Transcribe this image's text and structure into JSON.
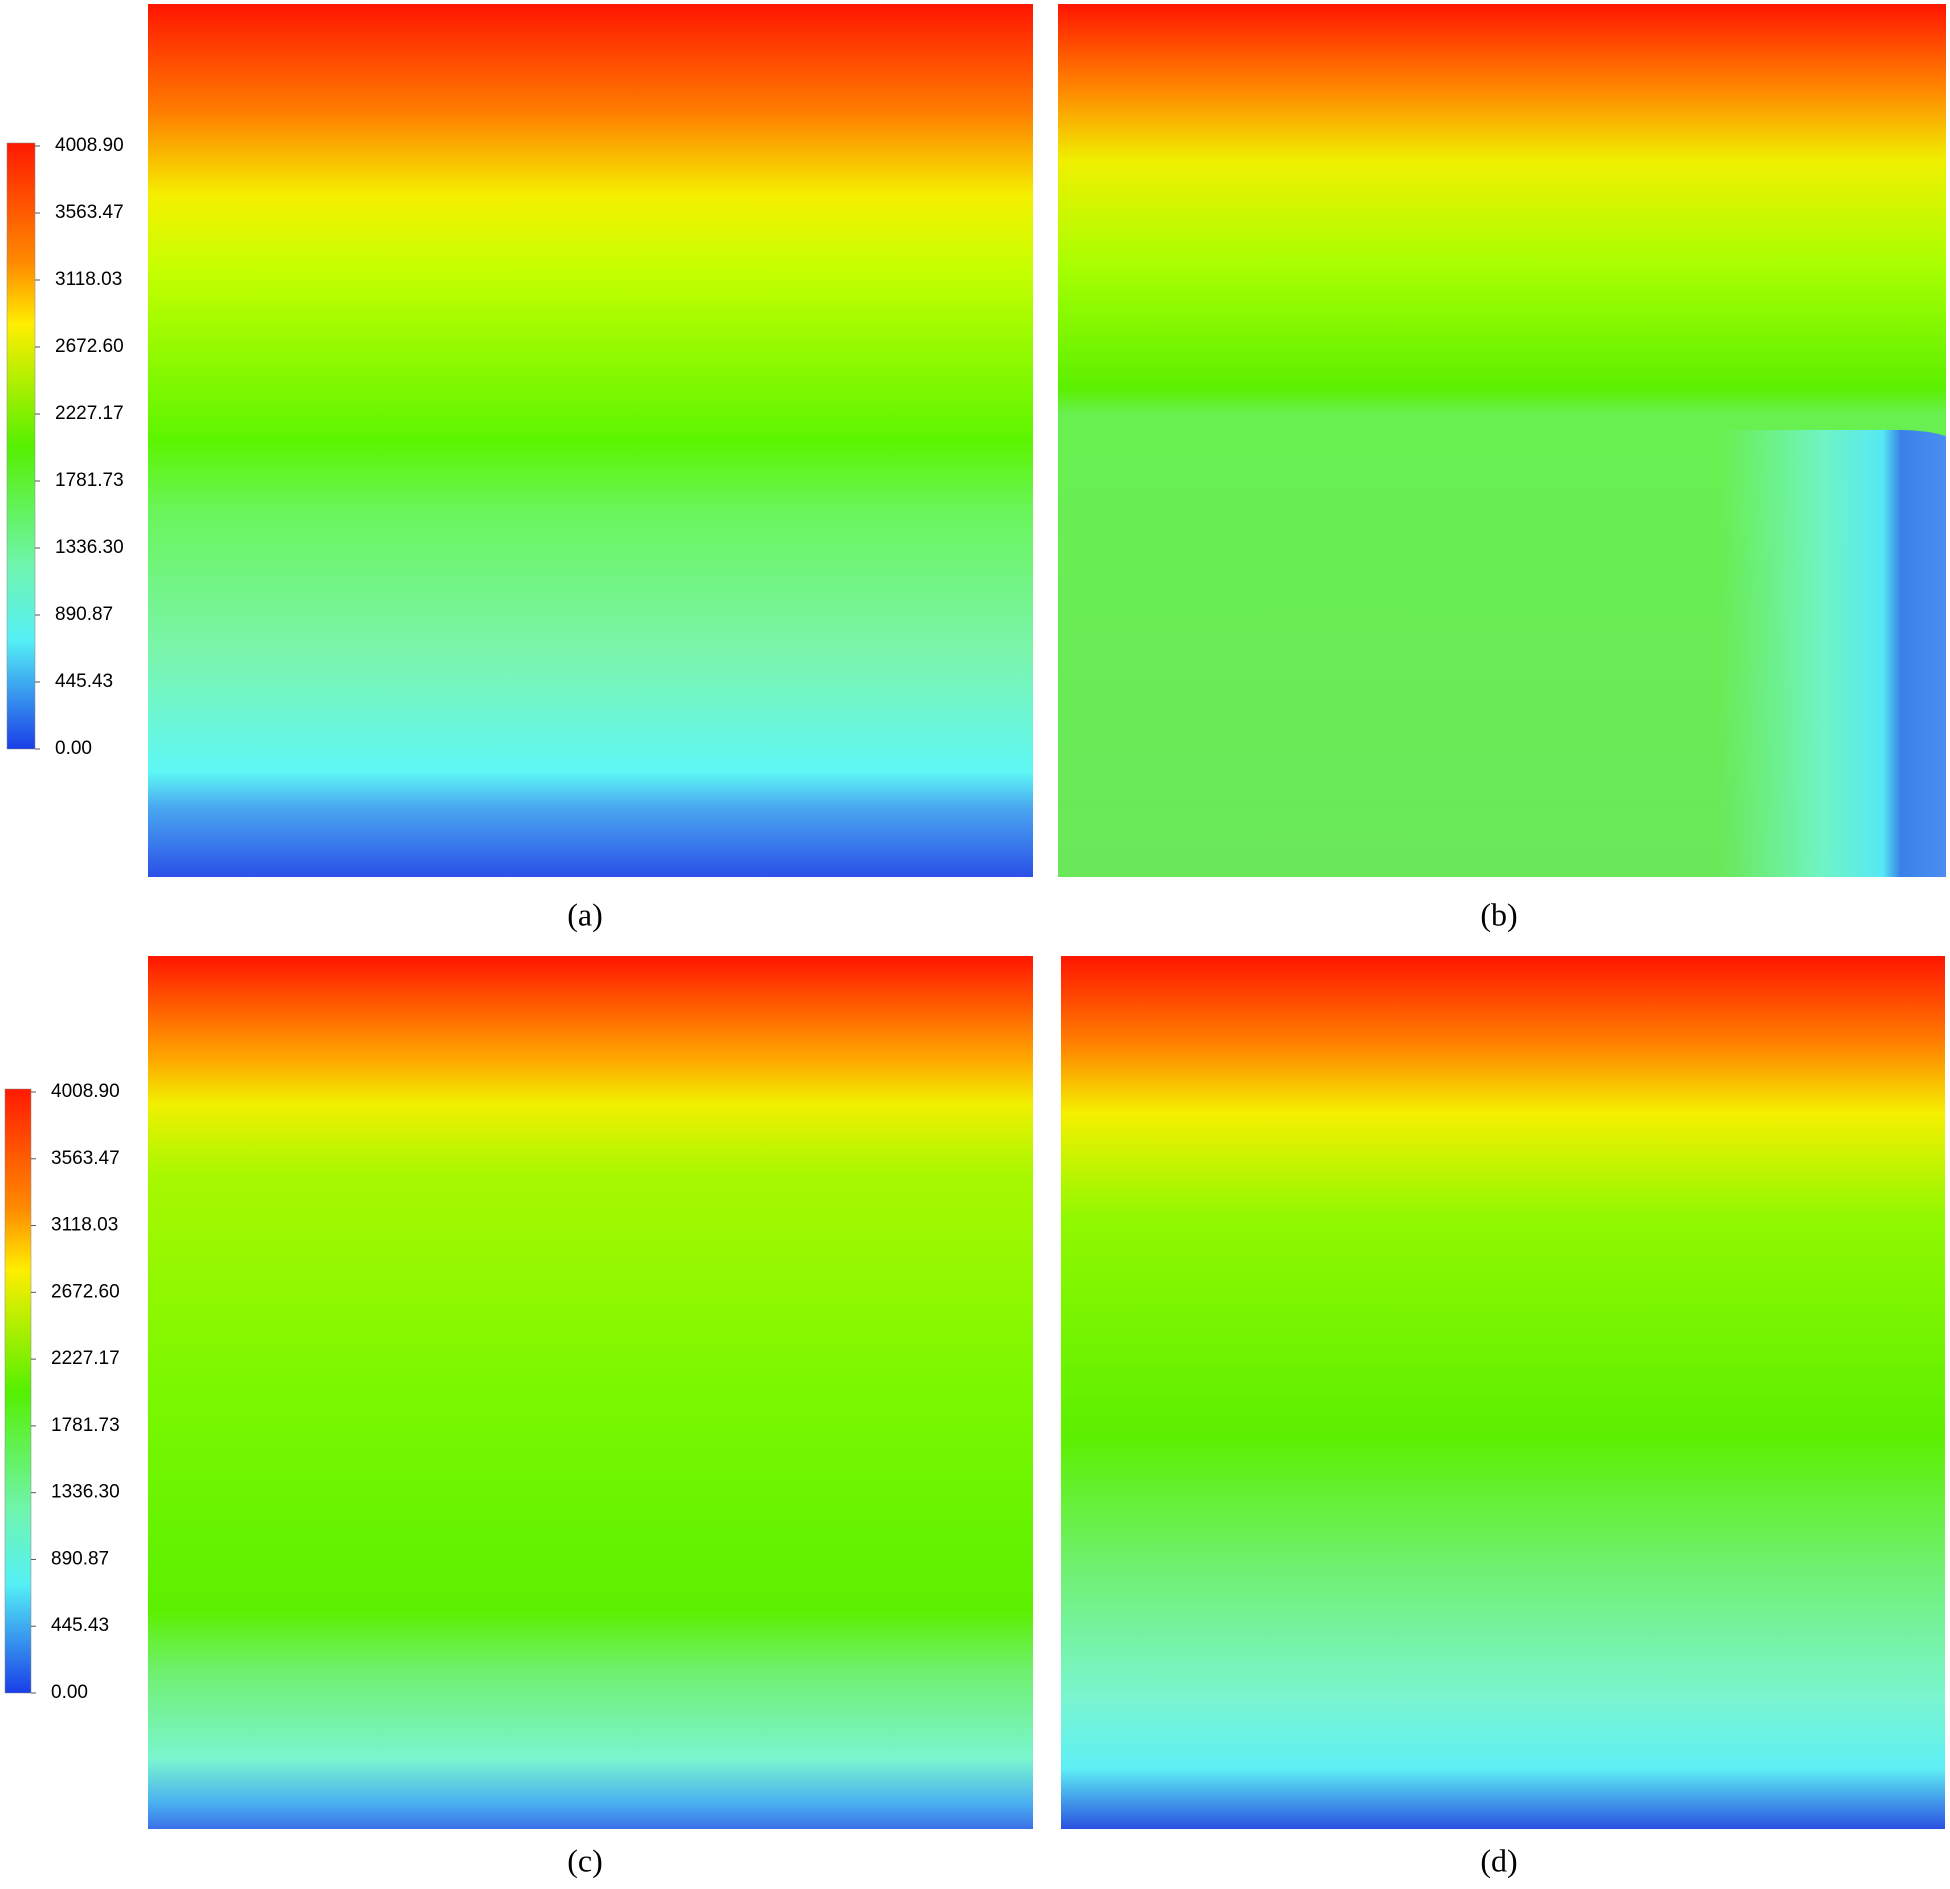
{
  "colorbars": [
    {
      "ticks": [
        "4008.90",
        "3563.47",
        "3118.03",
        "2672.60",
        "2227.17",
        "1781.73",
        "1336.30",
        "890.87",
        "445.43",
        "0.00"
      ]
    },
    {
      "ticks": [
        "4008.90",
        "3563.47",
        "3118.03",
        "2672.60",
        "2227.17",
        "1781.73",
        "1336.30",
        "890.87",
        "445.43",
        "0.00"
      ]
    }
  ],
  "panels": [
    {
      "label": "(a)"
    },
    {
      "label": "(b)"
    },
    {
      "label": "(c)"
    },
    {
      "label": "(d)"
    }
  ]
}
